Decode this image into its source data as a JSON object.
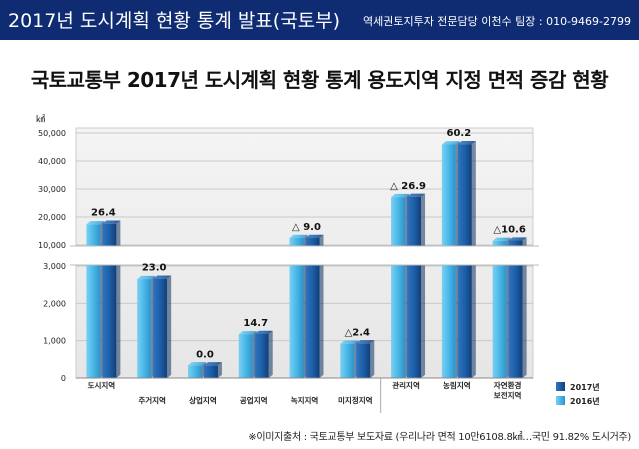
{
  "header": {
    "title": "2017년 도시계획 현황 통계 발표(국토부)",
    "contact": "역세권토지투자 전문담당 이천수 팀장 : 010-9469-2799"
  },
  "main_title": "국토교통부 2017년 도시계획 현황 통계 용도지역 지정 면적 증감 현황",
  "source": "※이미지출처 : 국토교통부 보도자료 (우리나라 면적 10만6108.8㎢…국민 91.82% 도시거주)",
  "colors": {
    "header_bg": "#0f2c73",
    "bar_2017": "#1d5fa8",
    "bar_2016": "#49b7e8",
    "axis_text": "#222222"
  },
  "chart_data": {
    "type": "bar",
    "unit": "㎢",
    "categories": [
      "도시지역",
      "주거지역",
      "상업지역",
      "공업지역",
      "녹지지역",
      "미지정지역",
      "관리지역",
      "농림지역",
      "자연환경\n보전지역"
    ],
    "series": [
      {
        "name": "2017년",
        "values": [
          17600,
          2660,
          340,
          1180,
          12500,
          930,
          27200,
          46000,
          11600
        ]
      },
      {
        "name": "2016년",
        "values": [
          17400,
          2650,
          340,
          1170,
          12500,
          920,
          27100,
          45900,
          11500
        ]
      }
    ],
    "change_labels": [
      "26.4",
      "23.0",
      "0.0",
      "14.7",
      "△ 9.0",
      "△2.4",
      "△ 26.9",
      "60.2",
      "△10.6"
    ],
    "y_ticks_lower": [
      0,
      1000,
      2000,
      3000
    ],
    "y_ticks_upper": [
      10000,
      20000,
      30000,
      40000,
      50000
    ],
    "y_tick_labels_lower": [
      "0",
      "1,000",
      "2,000",
      "3,000"
    ],
    "y_tick_labels_upper": [
      "10,000",
      "20,000",
      "30,000",
      "40,000",
      "50,000"
    ],
    "axis_break": true,
    "grid": true,
    "legend_position": "bottom-right"
  }
}
